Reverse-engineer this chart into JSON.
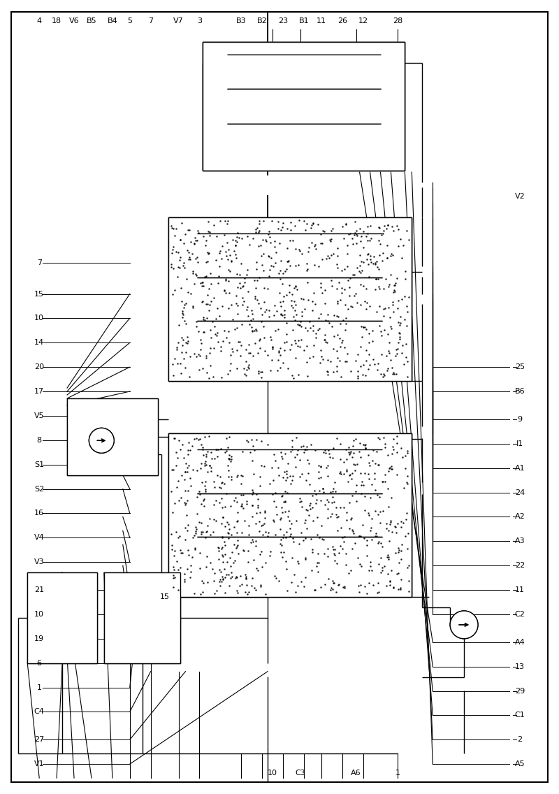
{
  "bg_color": "#ffffff",
  "line_color": "#000000",
  "fig_width": 8.0,
  "fig_height": 11.36,
  "left_labels": [
    [
      55,
      1095,
      "V1"
    ],
    [
      55,
      1060,
      "27"
    ],
    [
      55,
      1020,
      "C4"
    ],
    [
      55,
      985,
      "1"
    ],
    [
      55,
      950,
      "6"
    ],
    [
      55,
      915,
      "19"
    ],
    [
      55,
      880,
      "10"
    ],
    [
      55,
      845,
      "21"
    ],
    [
      55,
      805,
      "V3"
    ],
    [
      55,
      770,
      "V4"
    ],
    [
      55,
      735,
      "16"
    ],
    [
      55,
      700,
      "S2"
    ],
    [
      55,
      665,
      "S1"
    ],
    [
      55,
      630,
      "8"
    ],
    [
      55,
      595,
      "V5"
    ],
    [
      55,
      560,
      "17"
    ],
    [
      55,
      525,
      "20"
    ],
    [
      55,
      490,
      "14"
    ],
    [
      55,
      455,
      "10"
    ],
    [
      55,
      420,
      "15"
    ],
    [
      55,
      375,
      "7"
    ]
  ],
  "right_labels": [
    [
      745,
      1095,
      "A5"
    ],
    [
      745,
      1060,
      "2"
    ],
    [
      745,
      1025,
      "C1"
    ],
    [
      745,
      990,
      "29"
    ],
    [
      745,
      955,
      "13"
    ],
    [
      745,
      920,
      "A4"
    ],
    [
      745,
      880,
      "C2"
    ],
    [
      745,
      845,
      "11"
    ],
    [
      745,
      810,
      "22"
    ],
    [
      745,
      775,
      "A3"
    ],
    [
      745,
      740,
      "A2"
    ],
    [
      745,
      705,
      "24"
    ],
    [
      745,
      670,
      "A1"
    ],
    [
      745,
      635,
      "I1"
    ],
    [
      745,
      600,
      "9"
    ],
    [
      745,
      560,
      "B6"
    ],
    [
      745,
      525,
      "25"
    ],
    [
      745,
      280,
      "V2"
    ]
  ],
  "bot_labels": [
    [
      55,
      28,
      "4"
    ],
    [
      80,
      28,
      "18"
    ],
    [
      105,
      28,
      "V6"
    ],
    [
      130,
      28,
      "B5"
    ],
    [
      160,
      28,
      "B4"
    ],
    [
      185,
      28,
      "5"
    ],
    [
      215,
      28,
      "7"
    ],
    [
      255,
      28,
      "V7"
    ],
    [
      285,
      28,
      "3"
    ],
    [
      345,
      28,
      "B3"
    ],
    [
      375,
      28,
      "B2"
    ],
    [
      405,
      28,
      "23"
    ],
    [
      435,
      28,
      "B1"
    ],
    [
      460,
      28,
      "11"
    ],
    [
      490,
      28,
      "26"
    ],
    [
      520,
      28,
      "12"
    ],
    [
      570,
      28,
      "28"
    ]
  ],
  "top_labels": [
    [
      390,
      1108,
      "10"
    ],
    [
      430,
      1108,
      "C3"
    ],
    [
      510,
      1108,
      "A6"
    ],
    [
      570,
      1108,
      "1"
    ]
  ]
}
